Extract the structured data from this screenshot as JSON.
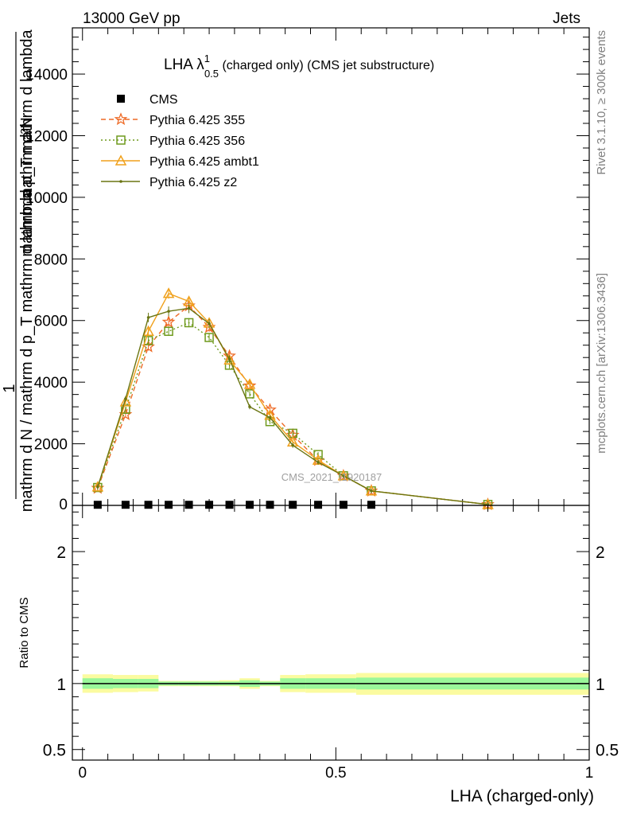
{
  "header": {
    "left": "13000 GeV pp",
    "right": "Jets",
    "side_top": "Rivet 3.1.10, ≥ 300k events",
    "side_bottom": "mcplots.cern.ch [arXiv:1306.3436]",
    "watermark": "CMS_2021_I1920187"
  },
  "main_plot": {
    "title_main": "LHA λ",
    "title_sup": "1",
    "title_sub": "0.5",
    "title_rest": " (charged only) (CMS jet substructure)",
    "ylabel_top": "mathrm d²N",
    "ylabel_side": "mathrm d p_T mathrm d lambda",
    "ylabel_denominator": "mathrm d N / mathrm d p_T mathrm d lambda",
    "ylabel_one": "1"
  },
  "legend": [
    {
      "name": "CMS",
      "color": "#000000",
      "marker": "square-filled",
      "dash": "solid"
    },
    {
      "name": "Pythia 6.425 355",
      "color": "#ee6a26",
      "marker": "star",
      "dash": "dashed"
    },
    {
      "name": "Pythia 6.425 356",
      "color": "#6f9a1d",
      "marker": "square-open",
      "dash": "dotted"
    },
    {
      "name": "Pythia 6.425 ambt1",
      "color": "#f0a11c",
      "marker": "triangle-open",
      "dash": "solid"
    },
    {
      "name": "Pythia 6.425 z2",
      "color": "#6a7512",
      "marker": "dot",
      "dash": "solid"
    }
  ],
  "ratio_plot": {
    "ylabel": "Ratio to CMS",
    "xlabel": "LHA (charged-only)",
    "band_inner_color": "#9af79a",
    "band_outer_color": "#fbfba0"
  },
  "chart_data": [
    {
      "type": "line",
      "title": "LHA λ^1_0.5 (charged only) (CMS jet substructure)",
      "xlabel": "LHA (charged-only)",
      "ylabel": "1/N dN/dpT dλ",
      "xlim": [
        -0.02,
        1.0
      ],
      "ylim": [
        0,
        15500
      ],
      "yticks": [
        2000,
        4000,
        6000,
        8000,
        10000,
        12000,
        14000
      ],
      "ytick_labels": [
        "2000",
        "4000",
        "6000",
        "8000",
        "10000",
        "12000",
        "14000"
      ],
      "ytick_zero": "0",
      "x": [
        0.03,
        0.085,
        0.13,
        0.17,
        0.21,
        0.25,
        0.29,
        0.33,
        0.37,
        0.415,
        0.465,
        0.515,
        0.57,
        0.8
      ],
      "series": [
        {
          "name": "CMS",
          "values": [
            20,
            20,
            20,
            20,
            20,
            20,
            20,
            20,
            20,
            20,
            20,
            20,
            20,
            null
          ]
        },
        {
          "name": "Pythia 6.425 355",
          "values": [
            560,
            2950,
            5150,
            5950,
            6480,
            5780,
            4850,
            3880,
            3100,
            2280,
            1460,
            960,
            470,
            30
          ]
        },
        {
          "name": "Pythia 6.425 356",
          "values": [
            580,
            3120,
            5350,
            5650,
            5930,
            5450,
            4550,
            3620,
            2720,
            2340,
            1650,
            960,
            470,
            30
          ]
        },
        {
          "name": "Pythia 6.425 ambt1",
          "values": [
            600,
            3360,
            5650,
            6880,
            6620,
            5920,
            4720,
            3930,
            2930,
            2060,
            1470,
            960,
            470,
            30
          ]
        },
        {
          "name": "Pythia 6.425 z2",
          "values": [
            600,
            3460,
            6100,
            6300,
            6400,
            5900,
            4750,
            3200,
            2850,
            1950,
            1400,
            960,
            470,
            30
          ]
        }
      ]
    },
    {
      "type": "area",
      "title": "",
      "xlabel": "LHA (charged-only)",
      "ylabel": "Ratio to CMS",
      "xlim": [
        -0.02,
        1.0
      ],
      "ylim": [
        0.42,
        2.35
      ],
      "yticks": [
        0.5,
        1,
        2
      ],
      "ytick_labels": [
        "0.5",
        "1",
        "2"
      ],
      "xticks": [
        0,
        0.5,
        1
      ],
      "xtick_labels": [
        "0",
        "0.5",
        "1"
      ],
      "bins": [
        {
          "lo": 0.0,
          "hi": 0.06,
          "inner": [
            0.96,
            1.04
          ],
          "outer": [
            0.93,
            1.07
          ]
        },
        {
          "lo": 0.06,
          "hi": 0.11,
          "inner": [
            0.965,
            1.035
          ],
          "outer": [
            0.935,
            1.065
          ]
        },
        {
          "lo": 0.11,
          "hi": 0.15,
          "inner": [
            0.965,
            1.035
          ],
          "outer": [
            0.94,
            1.065
          ]
        },
        {
          "lo": 0.15,
          "hi": 0.19,
          "inner": [
            0.985,
            1.015
          ],
          "outer": [
            0.98,
            1.02
          ]
        },
        {
          "lo": 0.19,
          "hi": 0.23,
          "inner": [
            0.985,
            1.015
          ],
          "outer": [
            0.98,
            1.02
          ]
        },
        {
          "lo": 0.23,
          "hi": 0.27,
          "inner": [
            0.985,
            1.015
          ],
          "outer": [
            0.98,
            1.02
          ]
        },
        {
          "lo": 0.27,
          "hi": 0.31,
          "inner": [
            0.985,
            1.015
          ],
          "outer": [
            0.98,
            1.025
          ]
        },
        {
          "lo": 0.31,
          "hi": 0.35,
          "inner": [
            0.975,
            1.025
          ],
          "outer": [
            0.96,
            1.04
          ]
        },
        {
          "lo": 0.35,
          "hi": 0.39,
          "inner": [
            0.985,
            1.015
          ],
          "outer": [
            0.98,
            1.02
          ]
        },
        {
          "lo": 0.39,
          "hi": 0.44,
          "inner": [
            0.96,
            1.04
          ],
          "outer": [
            0.935,
            1.065
          ]
        },
        {
          "lo": 0.44,
          "hi": 0.54,
          "inner": [
            0.96,
            1.04
          ],
          "outer": [
            0.93,
            1.07
          ]
        },
        {
          "lo": 0.54,
          "hi": 1.0,
          "inner": [
            0.955,
            1.045
          ],
          "outer": [
            0.915,
            1.08
          ]
        }
      ]
    }
  ]
}
